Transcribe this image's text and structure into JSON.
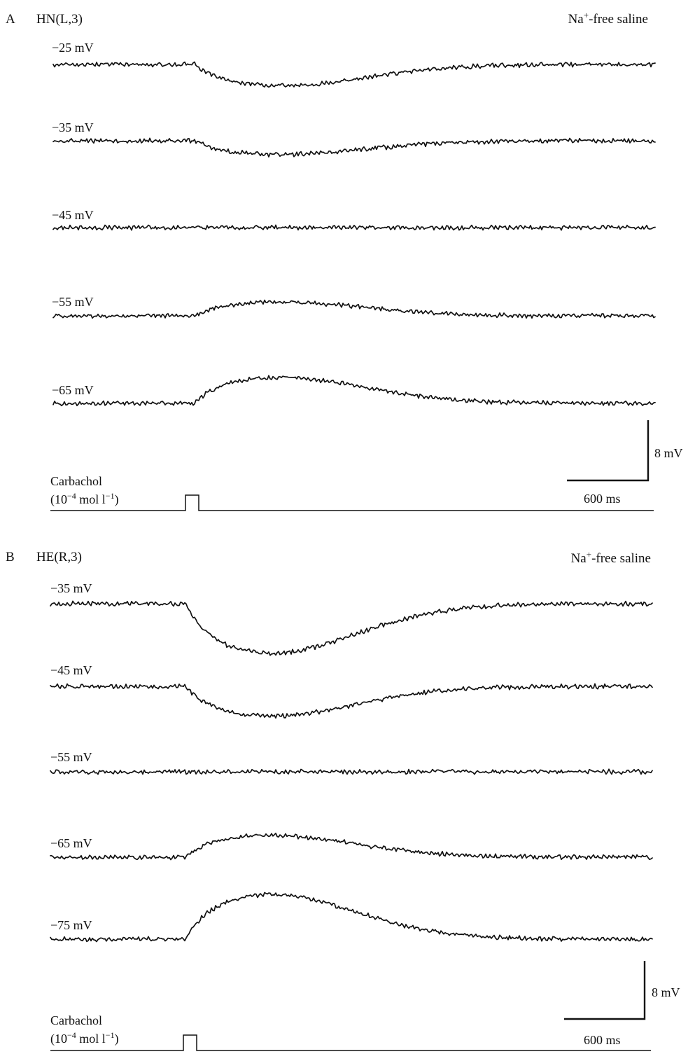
{
  "panels": [
    {
      "id": "A",
      "letter": "A",
      "cell": "HN(L,3)",
      "condition": {
        "main": "Na",
        "sup": "+",
        "rest": "-free saline"
      },
      "traces": [
        {
          "label": "−25 mV",
          "response": "hyperpolarizing",
          "amplitude": 0.62
        },
        {
          "label": "−35 mV",
          "response": "hyperpolarizing",
          "amplitude": 0.4
        },
        {
          "label": "−45 mV",
          "response": "none",
          "amplitude": 0.0
        },
        {
          "label": "−55 mV",
          "response": "depolarizing",
          "amplitude": 0.4
        },
        {
          "label": "−65 mV",
          "response": "depolarizing",
          "amplitude": 0.76
        }
      ],
      "scale_bar": {
        "voltage": "8 mV",
        "time": "600 ms"
      },
      "stimulus": {
        "line1": "Carbachol",
        "line2_pre": "(10",
        "line2_exp1": "−4",
        "line2_mid": " mol l",
        "line2_exp2": "−1",
        "line2_post": ")"
      }
    },
    {
      "id": "B",
      "letter": "B",
      "cell": "HE(R,3)",
      "condition": {
        "main": "Na",
        "sup": "+",
        "rest": "-free saline"
      },
      "traces": [
        {
          "label": "−35 mV",
          "response": "hyperpolarizing",
          "amplitude": 1.0
        },
        {
          "label": "−45 mV",
          "response": "hyperpolarizing",
          "amplitude": 0.6
        },
        {
          "label": "−55 mV",
          "response": "none",
          "amplitude": 0.0
        },
        {
          "label": "−65 mV",
          "response": "depolarizing",
          "amplitude": 0.44
        },
        {
          "label": "−75 mV",
          "response": "depolarizing",
          "amplitude": 0.9
        }
      ],
      "scale_bar": {
        "voltage": "8 mV",
        "time": "600 ms"
      },
      "stimulus": {
        "line1": "Carbachol",
        "line2_pre": "(10",
        "line2_exp1": "−4",
        "line2_mid": " mol l",
        "line2_exp2": "−1",
        "line2_post": ")"
      }
    }
  ]
}
